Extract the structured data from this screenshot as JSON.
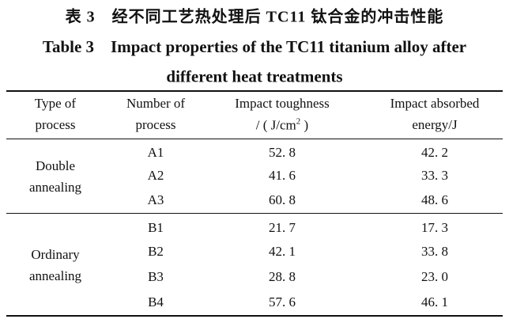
{
  "title_cn": "表 3　经不同工艺热处理后 TC11 钛合金的冲击性能",
  "title_en": [
    "Table 3　Impact properties of the TC11 titanium alloy after",
    "different heat treatments"
  ],
  "table": {
    "header": [
      [
        "Type of",
        "process"
      ],
      [
        "Number of",
        "process"
      ],
      [
        "Impact toughness",
        [
          "/ ( J/cm",
          "2",
          " )"
        ]
      ],
      [
        "Impact absorbed",
        "energy/J"
      ]
    ],
    "groups": [
      {
        "name": [
          "Double",
          "annealing"
        ],
        "rows": [
          [
            "A1",
            "52. 8",
            "42. 2"
          ],
          [
            "A2",
            "41. 6",
            "33. 3"
          ],
          [
            "A3",
            "60. 8",
            "48. 6"
          ]
        ]
      },
      {
        "name": [
          "Ordinary",
          "annealing"
        ],
        "rows": [
          [
            "B1",
            "21. 7",
            "17. 3"
          ],
          [
            "B2",
            "42. 1",
            "33. 8"
          ],
          [
            "B3",
            "28. 8",
            "23. 0"
          ],
          [
            "B4",
            "57. 6",
            "46. 1"
          ]
        ]
      }
    ]
  }
}
